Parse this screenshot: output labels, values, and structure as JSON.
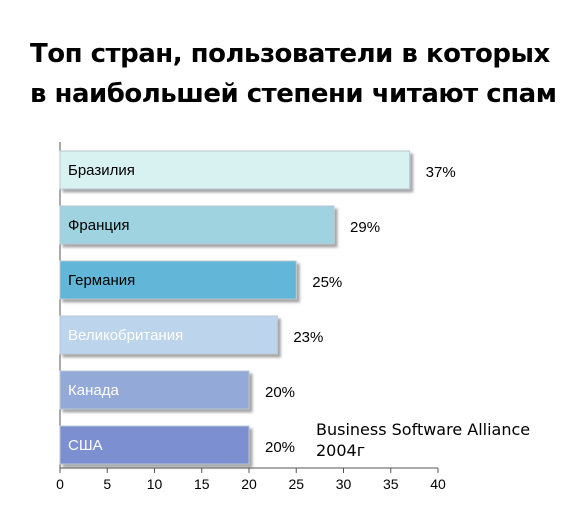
{
  "chart_data": {
    "type": "bar",
    "orientation": "horizontal",
    "title_lines": [
      "Топ стран, пользователи в которых",
      "в наибольшей степени читают спам"
    ],
    "categories": [
      "Бразилия",
      "Франция",
      "Германия",
      "Великобритания",
      "Канада",
      "США"
    ],
    "values": [
      37,
      29,
      25,
      23,
      20,
      20
    ],
    "value_labels": [
      "37%",
      "29%",
      "25%",
      "23%",
      "20%",
      "20%"
    ],
    "xlim": [
      0,
      40
    ],
    "xticks": [
      0,
      5,
      10,
      15,
      20,
      25,
      30,
      35,
      40
    ],
    "bar_colors": [
      "#d8f2f2",
      "#9fd3e0",
      "#62b6d8",
      "#bcd4ec",
      "#93a9d8",
      "#7b8fd0"
    ],
    "label_colors": [
      "#000000",
      "#000000",
      "#000000",
      "#ffffff",
      "#ffffff",
      "#ffffff"
    ],
    "source_lines": [
      "Business Software Alliance",
      "2004г"
    ],
    "grid": false
  }
}
